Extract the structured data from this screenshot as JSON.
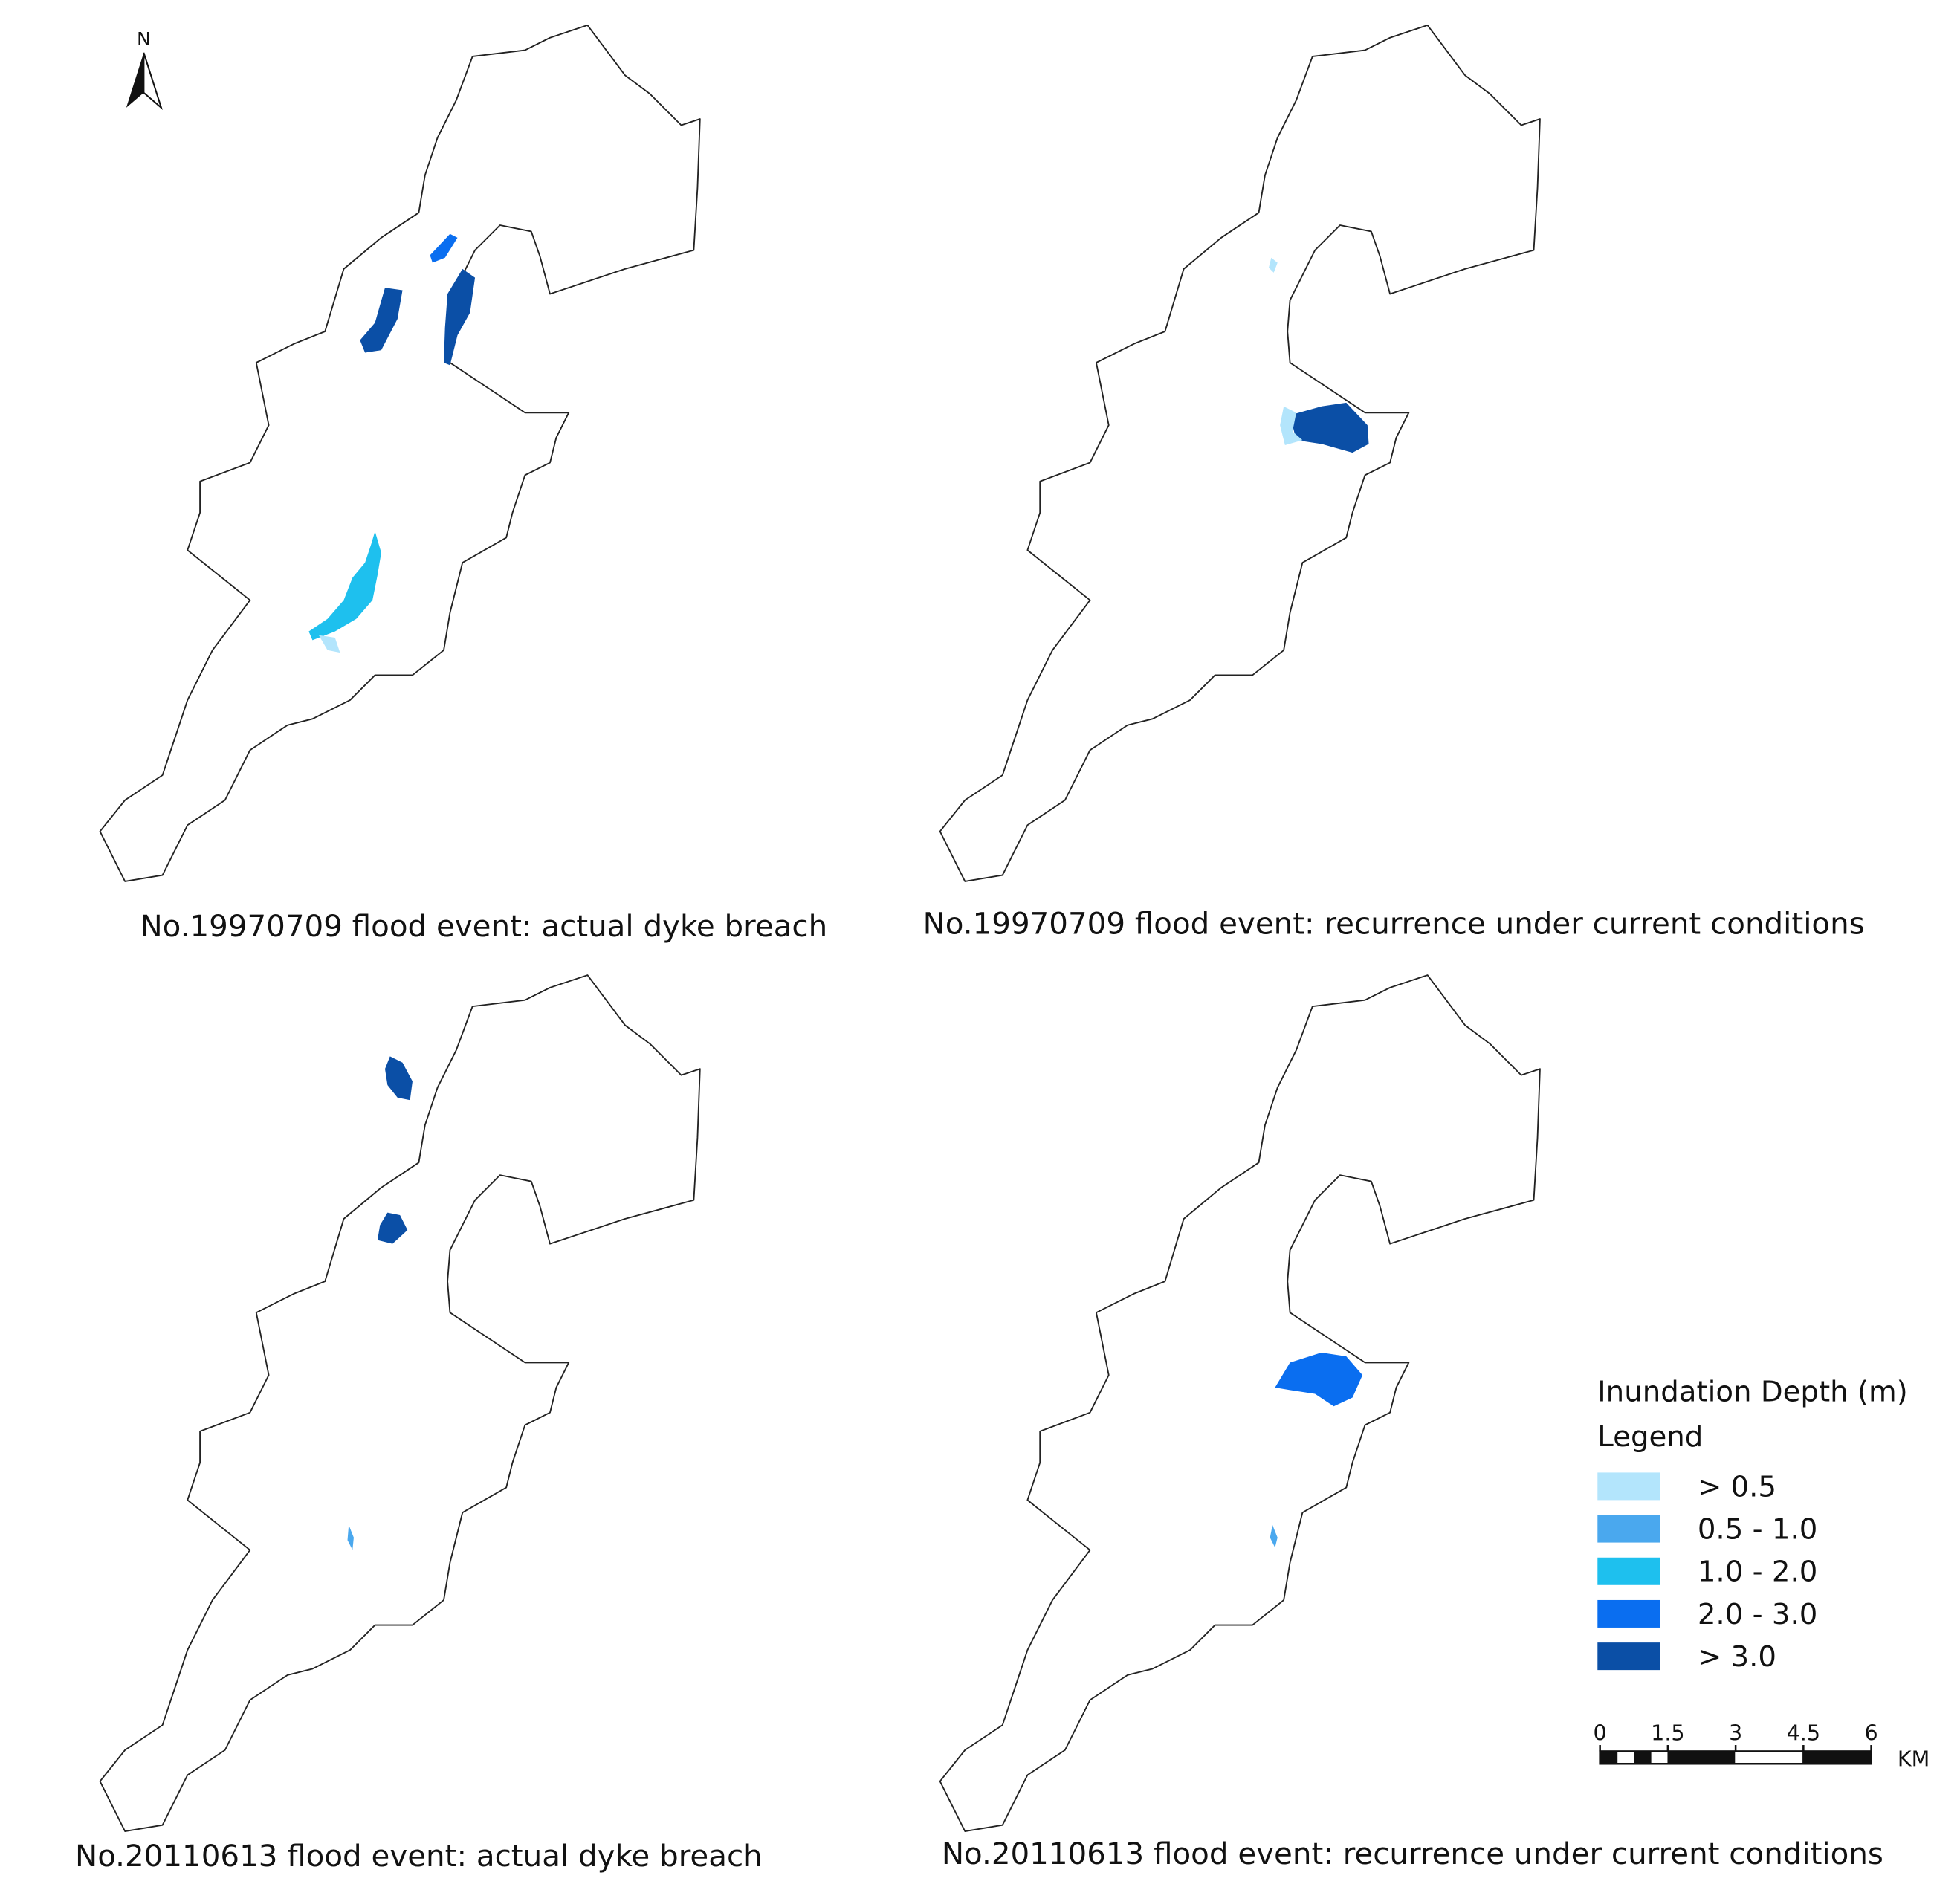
{
  "north_arrow": {
    "label": "N"
  },
  "panels": [
    {
      "caption": "No.19970709 flood event: actual dyke breach"
    },
    {
      "caption": "No.19970709 flood event: recurrence under current conditions"
    },
    {
      "caption": "No.20110613 flood event: actual dyke breach"
    },
    {
      "caption": "No.20110613 flood event: recurrence under current conditions"
    }
  ],
  "legend": {
    "title": "Inundation Depth (m)",
    "subtitle": "Legend",
    "items": [
      {
        "label": "> 0.5",
        "color": "#b3e5fc"
      },
      {
        "label": "0.5 - 1.0",
        "color": "#4aa8ee"
      },
      {
        "label": "1.0 - 2.0",
        "color": "#1ec0ee"
      },
      {
        "label": "2.0 - 3.0",
        "color": "#0a6ef0"
      },
      {
        "label": "> 3.0",
        "color": "#0b4fa6"
      }
    ]
  },
  "scale_bar": {
    "ticks": [
      "0",
      "1.5",
      "3",
      "4.5",
      "6"
    ],
    "unit": "KM"
  }
}
